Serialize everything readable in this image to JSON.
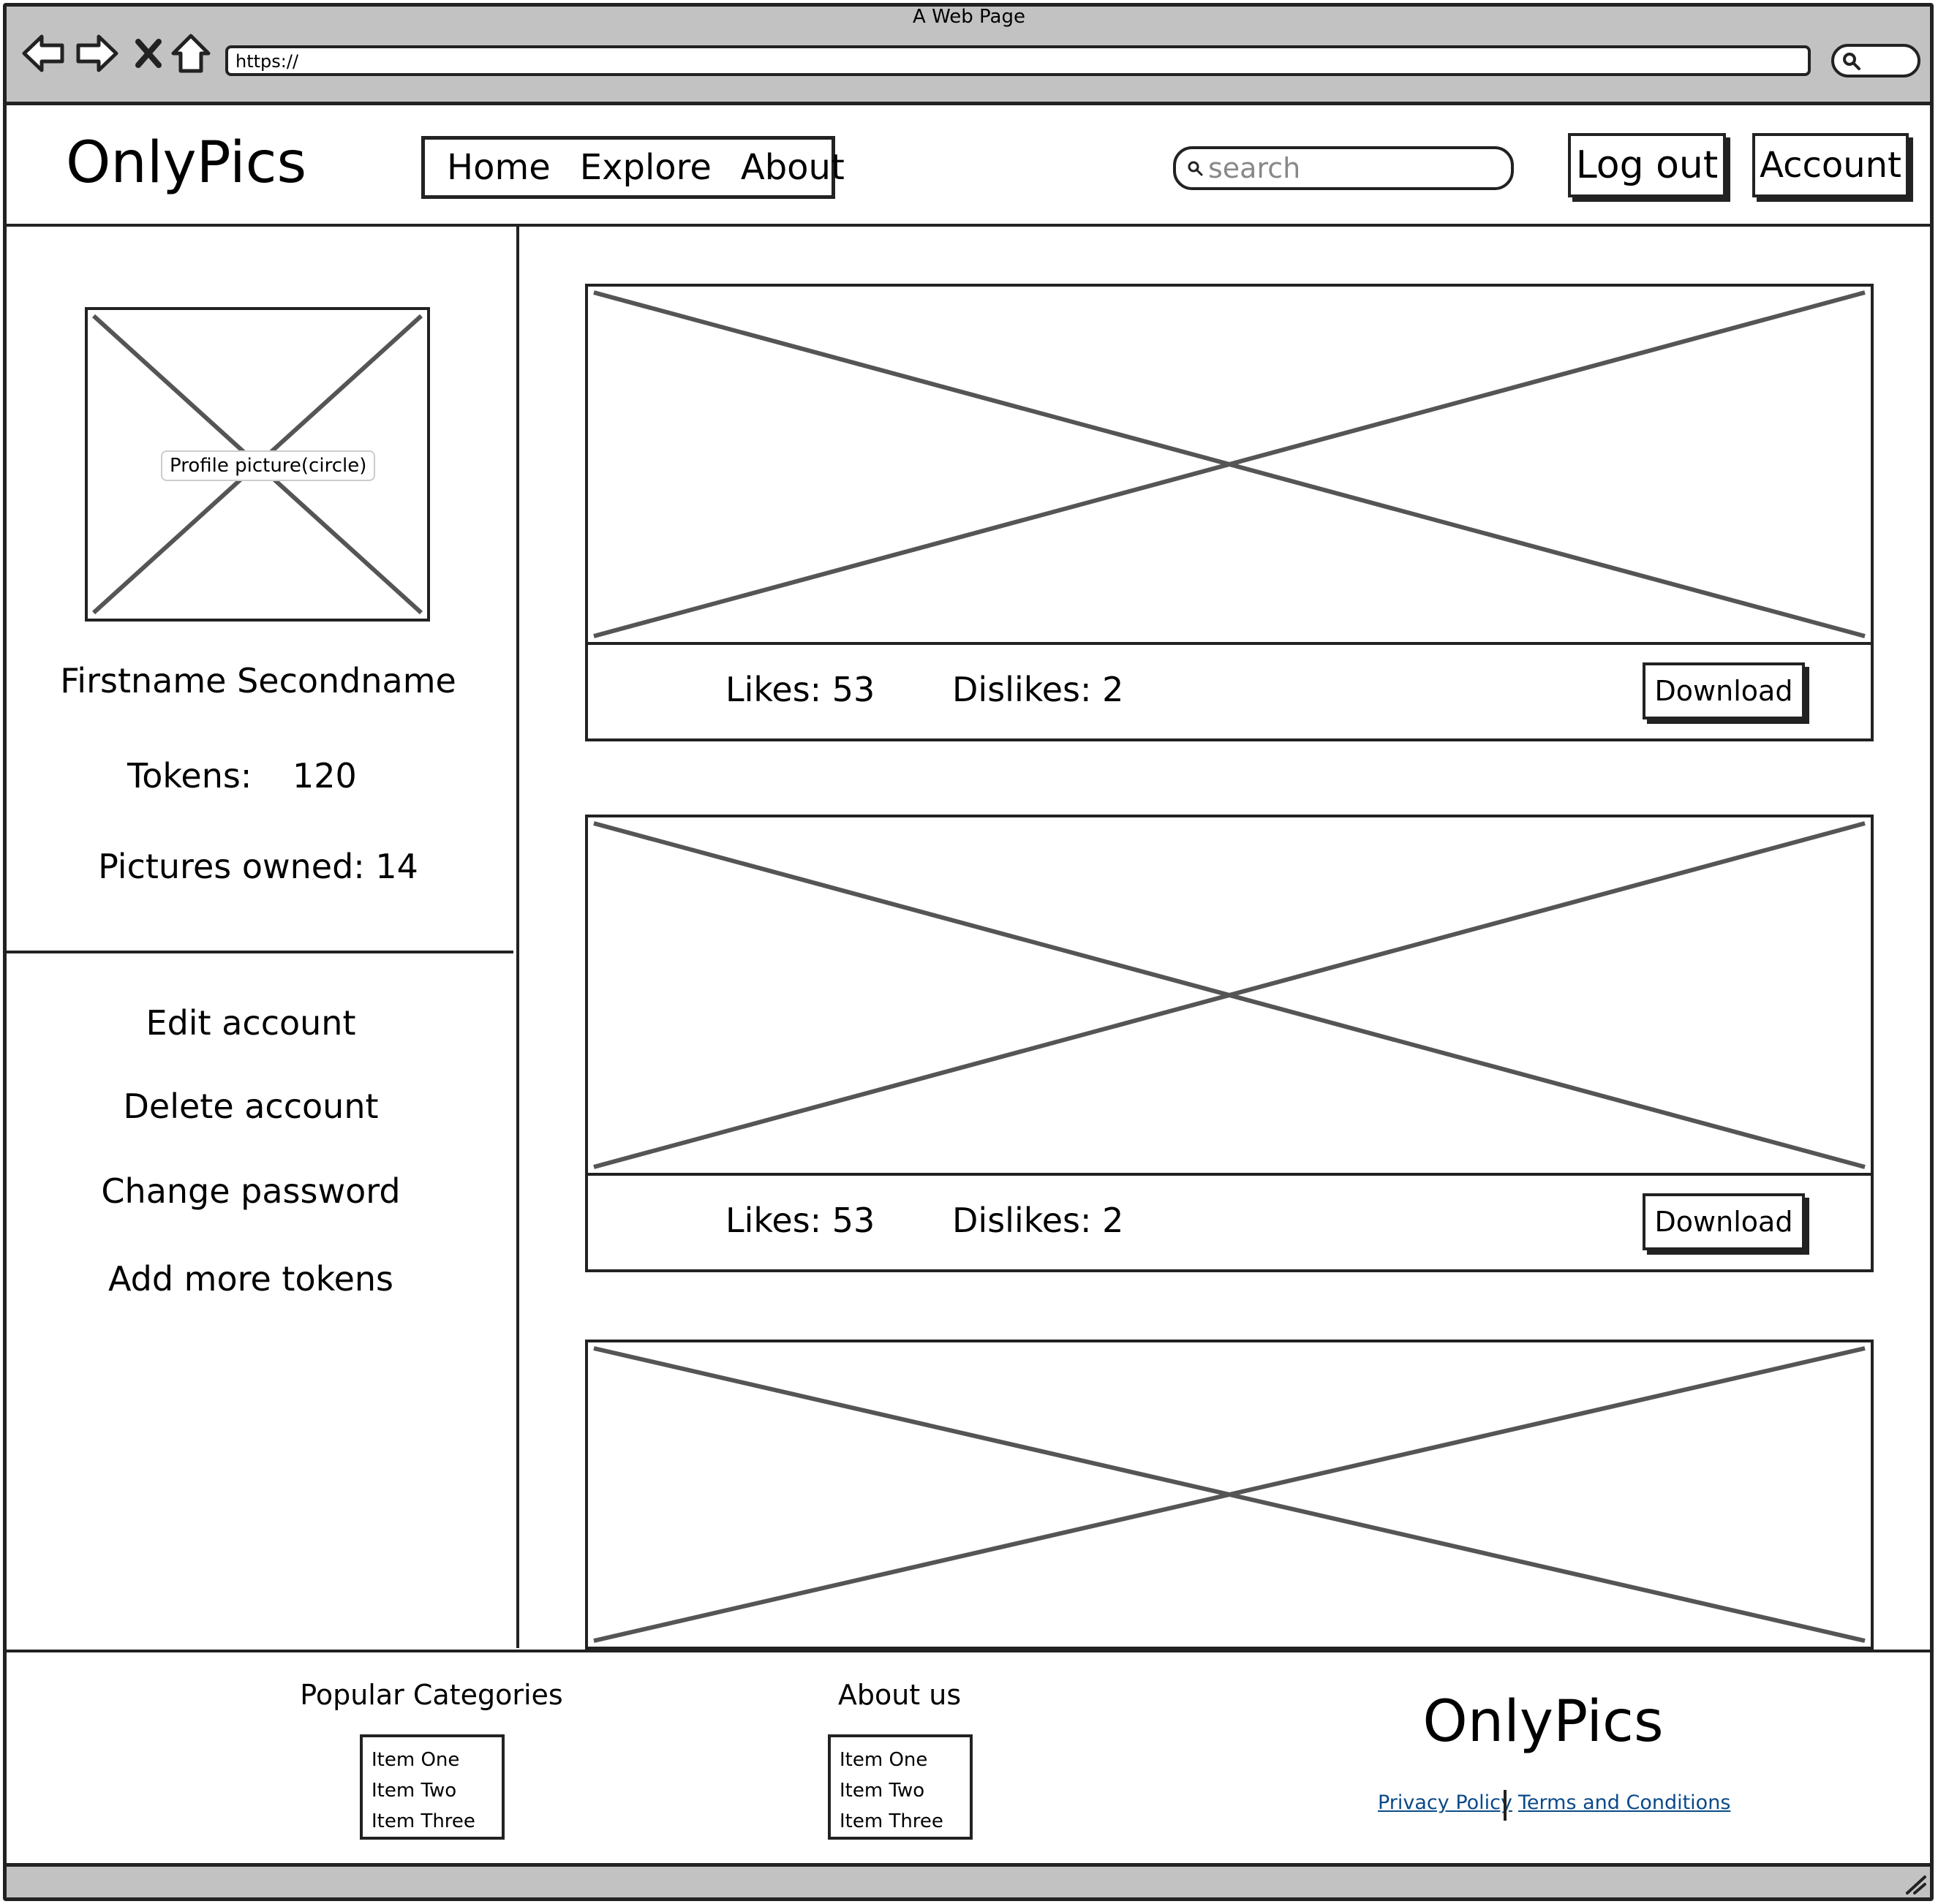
{
  "browser": {
    "window_title": "A Web Page",
    "url": "https://",
    "nav_icons": [
      "back-arrow-icon",
      "forward-arrow-icon",
      "close-x-icon",
      "home-icon"
    ]
  },
  "header": {
    "logo": "OnlyPics",
    "nav": [
      "Home",
      "Explore",
      "About"
    ],
    "search_placeholder": "search",
    "logout_label": "Log out",
    "account_label": "Account"
  },
  "sidebar": {
    "profile_picture_label": "Profile picture(circle)",
    "name": "Firstname Secondname",
    "tokens_label": "Tokens:",
    "tokens_value": "120",
    "pictures_owned": "Pictures owned: 14",
    "menu": [
      "Edit account",
      "Delete account",
      "Change password",
      "Add more tokens"
    ]
  },
  "feed": {
    "posts": [
      {
        "likes": "Likes: 53",
        "dislikes": "Dislikes: 2",
        "download_label": "Download"
      },
      {
        "likes": "Likes: 53",
        "dislikes": "Dislikes: 2",
        "download_label": "Download"
      },
      {}
    ]
  },
  "footer": {
    "categories_title": "Popular Categories",
    "categories": [
      "Item One",
      "Item Two",
      "Item Three"
    ],
    "about_title": "About us",
    "about_items": [
      "Item One",
      "Item Two",
      "Item Three"
    ],
    "logo": "OnlyPics",
    "privacy_label": "Privacy Policy",
    "terms_label": "Terms and Conditions"
  },
  "colors": {
    "chrome": "#c2c2c2",
    "stroke": "#222222",
    "placeholder_cross": "#555555",
    "link": "#0a4a8a"
  }
}
